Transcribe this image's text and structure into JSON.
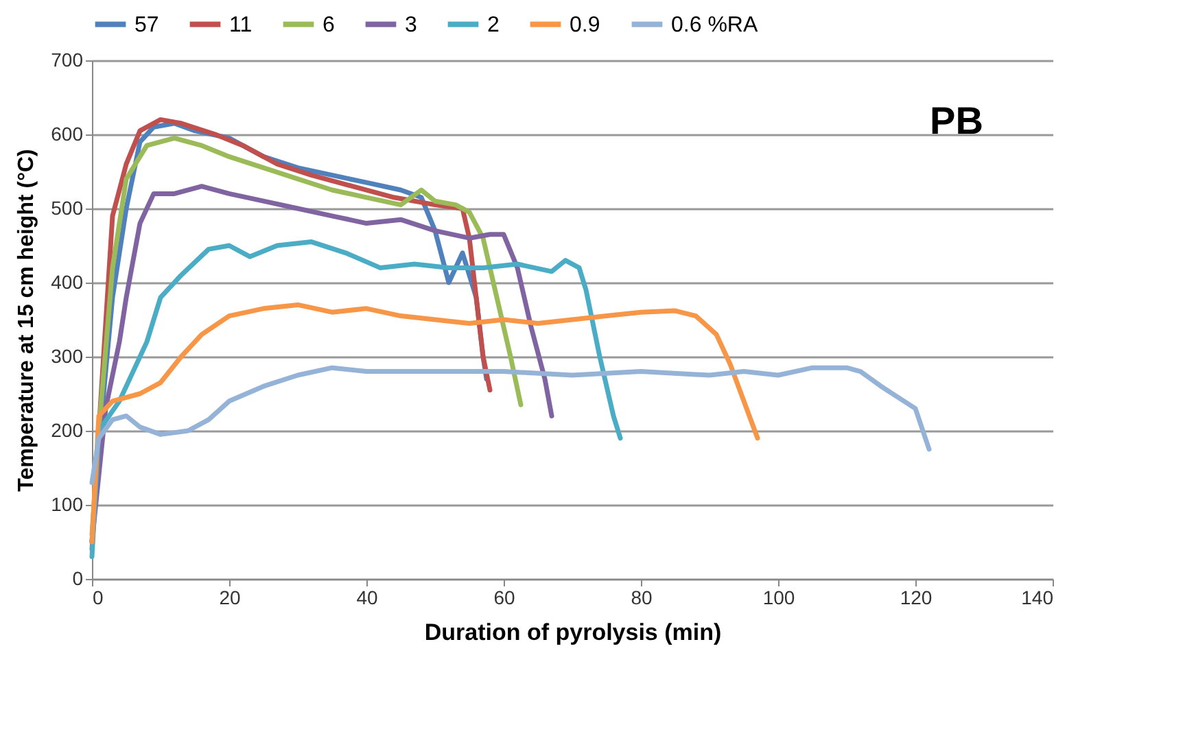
{
  "chart_data": {
    "type": "line",
    "xlabel": "Duration of pyrolysis (min)",
    "ylabel": "Temperature at 15 cm height (°C)",
    "xlim": [
      0,
      140
    ],
    "xticks": [
      0,
      20,
      40,
      60,
      80,
      100,
      120,
      140
    ],
    "ylim": [
      0,
      700
    ],
    "yticks": [
      0,
      100,
      200,
      300,
      400,
      500,
      600,
      700
    ],
    "grid": "y",
    "legend": "top",
    "marker": "none",
    "line_style": "solid",
    "annotations": [
      "PB"
    ],
    "series": [
      {
        "name": "57",
        "color": "#4f81bd",
        "x": [
          0,
          1,
          3,
          5,
          7,
          9,
          12,
          15,
          20,
          25,
          30,
          35,
          40,
          45,
          48,
          50,
          52,
          54,
          56,
          57,
          57.5
        ],
        "values": [
          40,
          180,
          380,
          500,
          590,
          610,
          615,
          605,
          595,
          570,
          555,
          545,
          535,
          525,
          515,
          470,
          400,
          440,
          380,
          300,
          270
        ]
      },
      {
        "name": "11",
        "color": "#c0504d",
        "x": [
          0,
          1,
          3,
          5,
          7,
          10,
          13,
          18,
          22,
          27,
          32,
          38,
          44,
          50,
          54,
          55,
          56,
          57,
          58
        ],
        "values": [
          50,
          200,
          490,
          560,
          605,
          620,
          615,
          600,
          585,
          560,
          545,
          530,
          515,
          505,
          500,
          460,
          380,
          300,
          255
        ]
      },
      {
        "name": "6",
        "color": "#9bbb59",
        "x": [
          0,
          1,
          3,
          5,
          8,
          12,
          16,
          20,
          25,
          30,
          35,
          40,
          45,
          48,
          50,
          53,
          55,
          57,
          59,
          61,
          62.5
        ],
        "values": [
          60,
          200,
          420,
          540,
          585,
          595,
          585,
          570,
          555,
          540,
          525,
          515,
          505,
          525,
          510,
          505,
          495,
          460,
          380,
          300,
          235
        ]
      },
      {
        "name": "3",
        "color": "#8064a2",
        "x": [
          0,
          2,
          4,
          5,
          7,
          9,
          12,
          16,
          20,
          25,
          30,
          35,
          40,
          45,
          50,
          55,
          58,
          60,
          62,
          64,
          66,
          67
        ],
        "values": [
          50,
          230,
          320,
          380,
          480,
          520,
          520,
          530,
          520,
          510,
          500,
          490,
          480,
          485,
          470,
          460,
          465,
          465,
          420,
          340,
          270,
          220
        ]
      },
      {
        "name": "2",
        "color": "#4bacc6",
        "x": [
          0,
          1,
          4,
          6,
          8,
          10,
          13,
          17,
          20,
          23,
          27,
          32,
          37,
          42,
          47,
          52,
          57,
          62,
          67,
          69,
          71,
          72,
          74,
          76,
          77
        ],
        "values": [
          30,
          200,
          240,
          280,
          320,
          380,
          410,
          445,
          450,
          435,
          450,
          455,
          440,
          420,
          425,
          420,
          420,
          425,
          415,
          430,
          420,
          390,
          300,
          220,
          190
        ]
      },
      {
        "name": "0.9",
        "color": "#f79646",
        "x": [
          0,
          1,
          3,
          7,
          10,
          13,
          16,
          20,
          25,
          30,
          35,
          40,
          45,
          50,
          55,
          60,
          65,
          70,
          75,
          80,
          85,
          88,
          91,
          93,
          95,
          97
        ],
        "values": [
          50,
          220,
          240,
          250,
          265,
          300,
          330,
          355,
          365,
          370,
          360,
          365,
          355,
          350,
          345,
          350,
          345,
          350,
          355,
          360,
          362,
          355,
          330,
          290,
          240,
          190
        ]
      },
      {
        "name": "0.6 %RA",
        "color": "#95b3d7",
        "x": [
          0,
          1,
          3,
          5,
          7,
          10,
          14,
          17,
          20,
          25,
          30,
          35,
          40,
          50,
          60,
          70,
          80,
          90,
          95,
          100,
          105,
          110,
          112,
          115,
          120,
          122
        ],
        "values": [
          130,
          190,
          215,
          220,
          205,
          195,
          200,
          215,
          240,
          260,
          275,
          285,
          280,
          280,
          280,
          275,
          280,
          275,
          280,
          275,
          285,
          285,
          280,
          260,
          230,
          175
        ]
      }
    ]
  }
}
